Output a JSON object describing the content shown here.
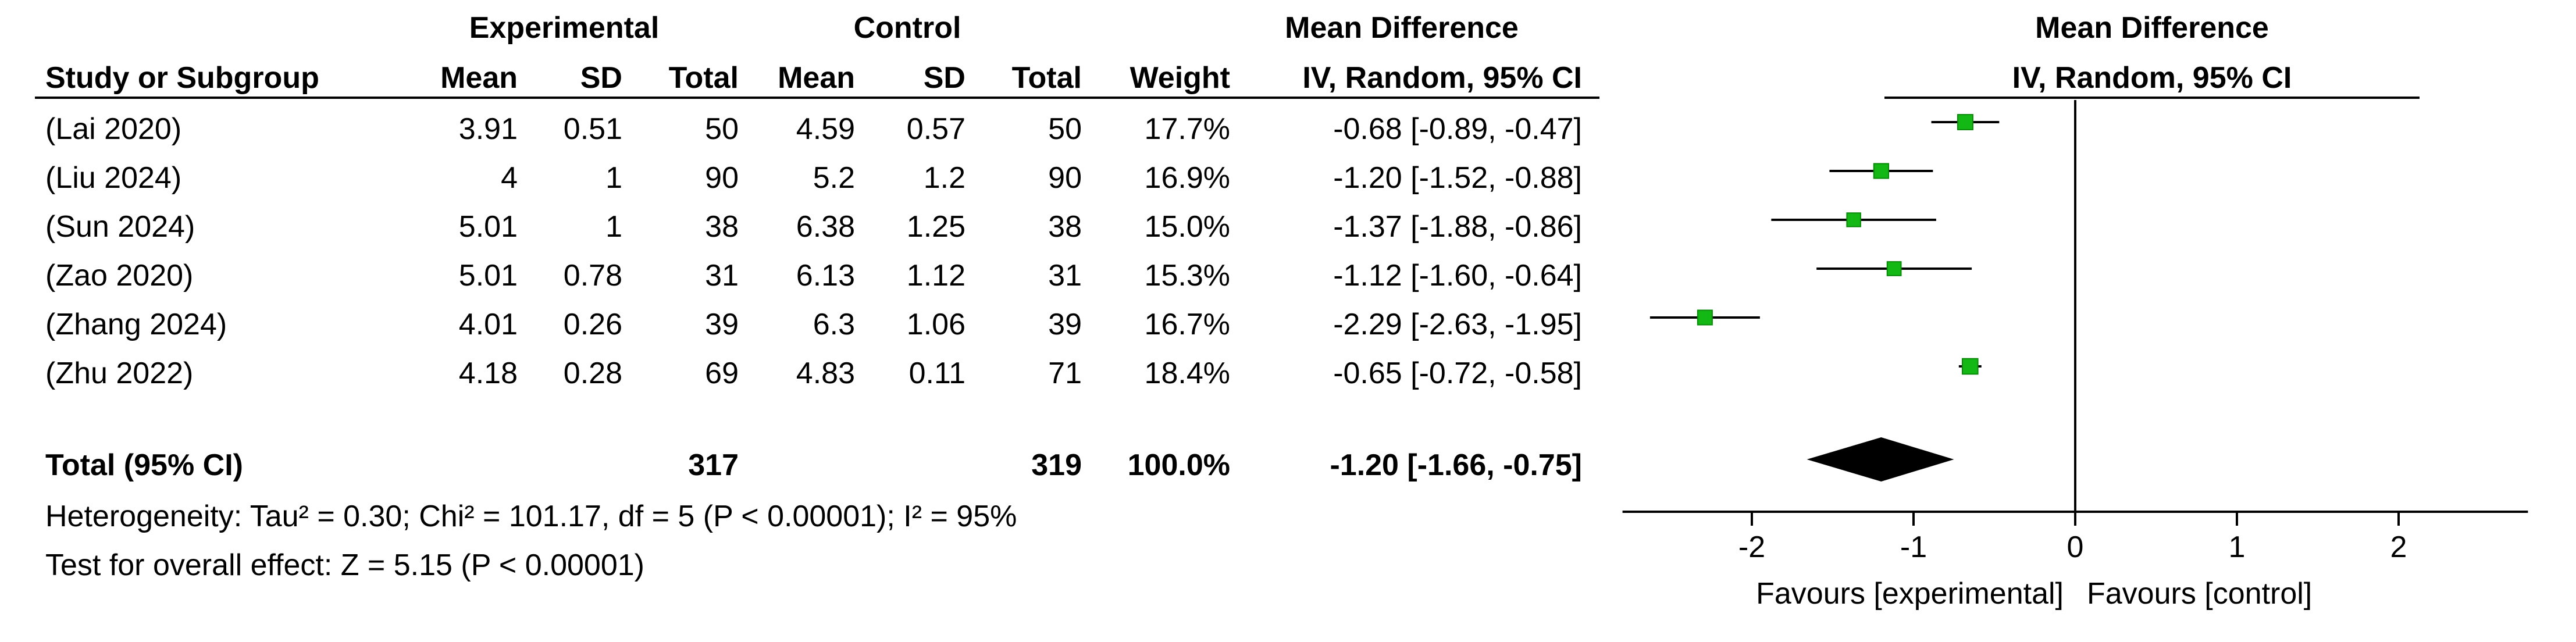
{
  "headers": {
    "experimental": "Experimental",
    "control": "Control",
    "mean_difference": "Mean Difference",
    "plot_mean_difference": "Mean Difference",
    "study_or_subgroup": "Study or Subgroup",
    "mean": "Mean",
    "sd": "SD",
    "total": "Total",
    "weight": "Weight",
    "method": "IV, Random, 95% CI",
    "plot_method": "IV, Random, 95% CI"
  },
  "studies": [
    {
      "study": "(Lai 2020)",
      "exp_mean": "3.91",
      "exp_sd": "0.51",
      "exp_total": "50",
      "ctrl_mean": "4.59",
      "ctrl_sd": "0.57",
      "ctrl_total": "50",
      "weight": "17.7%",
      "ci": "-0.68 [-0.89, -0.47]"
    },
    {
      "study": "(Liu 2024)",
      "exp_mean": "4",
      "exp_sd": "1",
      "exp_total": "90",
      "ctrl_mean": "5.2",
      "ctrl_sd": "1.2",
      "ctrl_total": "90",
      "weight": "16.9%",
      "ci": "-1.20 [-1.52, -0.88]"
    },
    {
      "study": "(Sun 2024)",
      "exp_mean": "5.01",
      "exp_sd": "1",
      "exp_total": "38",
      "ctrl_mean": "6.38",
      "ctrl_sd": "1.25",
      "ctrl_total": "38",
      "weight": "15.0%",
      "ci": "-1.37 [-1.88, -0.86]"
    },
    {
      "study": "(Zao 2020)",
      "exp_mean": "5.01",
      "exp_sd": "0.78",
      "exp_total": "31",
      "ctrl_mean": "6.13",
      "ctrl_sd": "1.12",
      "ctrl_total": "31",
      "weight": "15.3%",
      "ci": "-1.12 [-1.60, -0.64]"
    },
    {
      "study": "(Zhang 2024)",
      "exp_mean": "4.01",
      "exp_sd": "0.26",
      "exp_total": "39",
      "ctrl_mean": "6.3",
      "ctrl_sd": "1.06",
      "ctrl_total": "39",
      "weight": "16.7%",
      "ci": "-2.29 [-2.63, -1.95]"
    },
    {
      "study": "(Zhu 2022)",
      "exp_mean": "4.18",
      "exp_sd": "0.28",
      "exp_total": "69",
      "ctrl_mean": "4.83",
      "ctrl_sd": "0.11",
      "ctrl_total": "71",
      "weight": "18.4%",
      "ci": "-0.65 [-0.72, -0.58]"
    }
  ],
  "total": {
    "label": "Total (95% CI)",
    "exp_total": "317",
    "ctrl_total": "319",
    "weight": "100.0%",
    "ci": "-1.20 [-1.66, -0.75]"
  },
  "heterogeneity": "Heterogeneity: Tau² = 0.30; Chi² = 101.17, df = 5 (P < 0.00001); I² = 95%",
  "overall_effect": "Test for overall effect: Z = 5.15 (P < 0.00001)",
  "colors": {
    "point": "#14b814",
    "point_edge": "#0a8a0a",
    "diamond": "#000000",
    "line": "#000000"
  },
  "chart_data": {
    "type": "forest",
    "xlim": [
      -2.8,
      2.8
    ],
    "ticks": [
      -2,
      -1,
      0,
      1,
      2
    ],
    "tick_labels": [
      "-2",
      "-1",
      "0",
      "1",
      "2"
    ],
    "favours_left": "Favours [experimental]",
    "favours_right": "Favours [control]",
    "studies": [
      {
        "name": "(Lai 2020)",
        "md": -0.68,
        "lo": -0.89,
        "hi": -0.47,
        "weight": 17.7
      },
      {
        "name": "(Liu 2024)",
        "md": -1.2,
        "lo": -1.52,
        "hi": -0.88,
        "weight": 16.9
      },
      {
        "name": "(Sun 2024)",
        "md": -1.37,
        "lo": -1.88,
        "hi": -0.86,
        "weight": 15.0
      },
      {
        "name": "(Zao 2020)",
        "md": -1.12,
        "lo": -1.6,
        "hi": -0.64,
        "weight": 15.3
      },
      {
        "name": "(Zhang 2024)",
        "md": -2.29,
        "lo": -2.63,
        "hi": -1.95,
        "weight": 16.7
      },
      {
        "name": "(Zhu 2022)",
        "md": -0.65,
        "lo": -0.72,
        "hi": -0.58,
        "weight": 18.4
      }
    ],
    "pooled": {
      "md": -1.2,
      "lo": -1.66,
      "hi": -0.75
    }
  }
}
